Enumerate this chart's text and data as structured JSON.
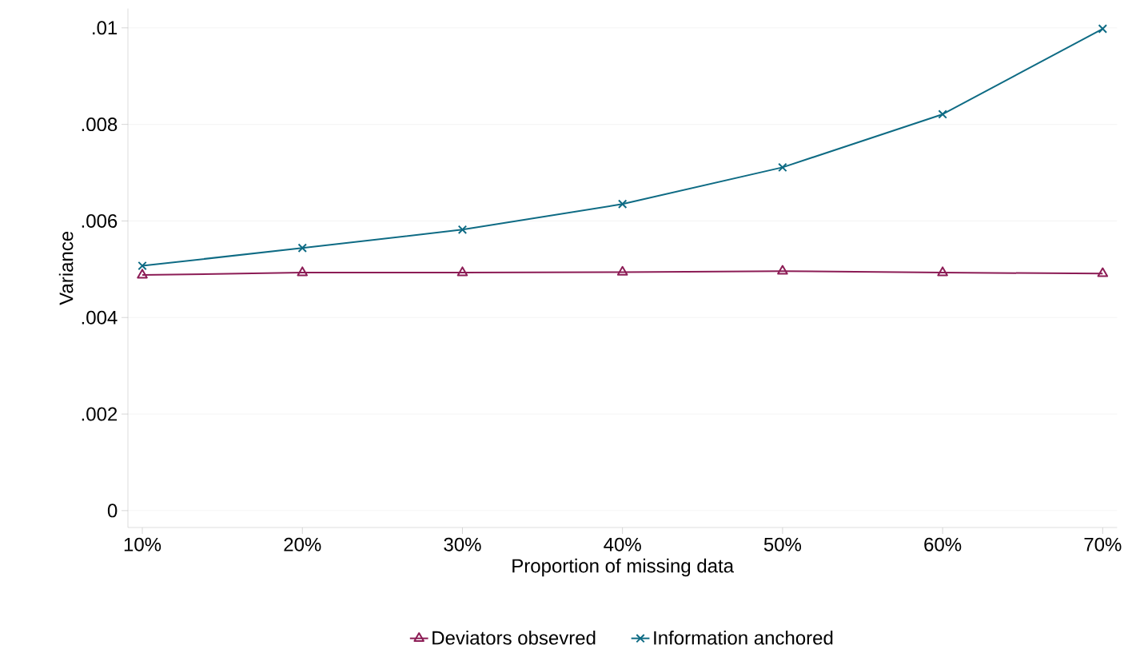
{
  "chart_data": {
    "type": "line",
    "xlabel": "Proportion of missing data",
    "ylabel": "Variance",
    "categories": [
      "10%",
      "20%",
      "30%",
      "40%",
      "50%",
      "60%",
      "70%"
    ],
    "series": [
      {
        "name": "Deviators obsevred",
        "color": "#8c1c55",
        "marker": "triangle",
        "values": [
          0.00488,
          0.00493,
          0.00493,
          0.00494,
          0.00496,
          0.00493,
          0.00491
        ]
      },
      {
        "name": "Information anchored",
        "color": "#0e6b84",
        "marker": "cross",
        "values": [
          0.00507,
          0.00544,
          0.00582,
          0.00635,
          0.00711,
          0.00821,
          0.00998
        ]
      }
    ],
    "ylim": [
      -0.00035,
      0.0104
    ],
    "yticks": [
      0,
      {
        "value": 0.002,
        "label": ".002"
      },
      {
        "value": 0.004,
        "label": ".004"
      },
      {
        "value": 0.006,
        "label": ".006"
      },
      {
        "value": 0.008,
        "label": ".008"
      },
      {
        "value": 0.01,
        "label": ".01"
      }
    ],
    "grid": "y",
    "legend": "bottom",
    "line_style": "solid"
  }
}
